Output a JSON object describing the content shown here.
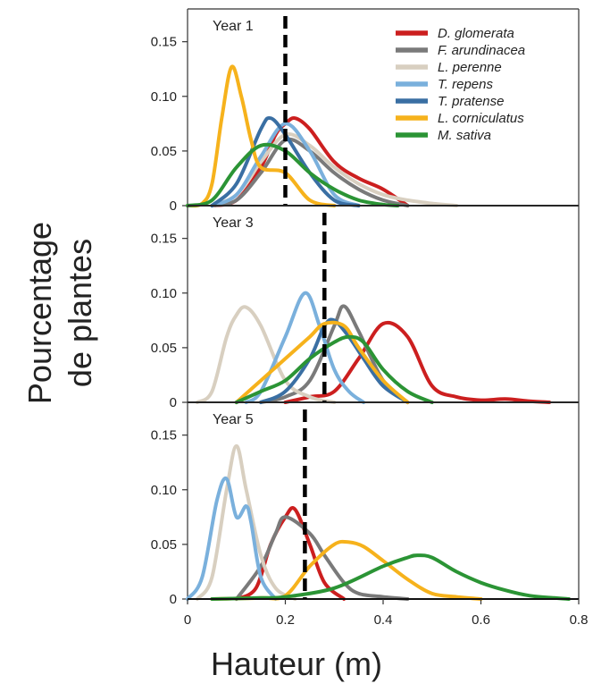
{
  "chart_data": {
    "type": "line",
    "xlabel": "Hauteur (m)",
    "ylabel_lines": [
      "Pourcentage",
      "de plantes"
    ],
    "x_ticks": [
      "0",
      "0.2",
      "0.4",
      "0.6",
      "0.8"
    ],
    "y_ticks": [
      "0",
      "0.05",
      "0.10",
      "0.15"
    ],
    "xlim": [
      0,
      0.8
    ],
    "ylim": [
      0,
      0.18
    ],
    "legend_position": "top-right",
    "legend": [
      {
        "name": "D. glomerata",
        "color": "#cc1f1f"
      },
      {
        "name": "F. arundinacea",
        "color": "#7a7a7a"
      },
      {
        "name": "L. perenne",
        "color": "#d8cfc0"
      },
      {
        "name": "T. repens",
        "color": "#7ab0dc"
      },
      {
        "name": "T. pratense",
        "color": "#3a6fa3"
      },
      {
        "name": "L. corniculatus",
        "color": "#f6b21c"
      },
      {
        "name": "M. sativa",
        "color": "#2b9435"
      }
    ],
    "panels": [
      {
        "label": "Year 1",
        "mean_line": 0.2,
        "series": [
          {
            "color": "#cc1f1f",
            "x": [
              0.05,
              0.1,
              0.15,
              0.18,
              0.2,
              0.22,
              0.25,
              0.3,
              0.35,
              0.4,
              0.45
            ],
            "y": [
              0,
              0.005,
              0.035,
              0.065,
              0.075,
              0.08,
              0.07,
              0.04,
              0.025,
              0.015,
              0
            ]
          },
          {
            "color": "#7a7a7a",
            "x": [
              0.05,
              0.1,
              0.15,
              0.2,
              0.25,
              0.3,
              0.35,
              0.4,
              0.45
            ],
            "y": [
              0,
              0.005,
              0.03,
              0.06,
              0.05,
              0.03,
              0.015,
              0.005,
              0
            ]
          },
          {
            "color": "#d8cfc0",
            "x": [
              0.05,
              0.1,
              0.15,
              0.2,
              0.25,
              0.3,
              0.35,
              0.4,
              0.45,
              0.5,
              0.55
            ],
            "y": [
              0,
              0.01,
              0.04,
              0.065,
              0.055,
              0.035,
              0.02,
              0.01,
              0.005,
              0.002,
              0
            ]
          },
          {
            "color": "#7ab0dc",
            "x": [
              0.05,
              0.1,
              0.15,
              0.2,
              0.25,
              0.3,
              0.35
            ],
            "y": [
              0,
              0.01,
              0.045,
              0.075,
              0.05,
              0.01,
              0
            ]
          },
          {
            "color": "#3a6fa3",
            "x": [
              0.05,
              0.1,
              0.15,
              0.17,
              0.2,
              0.25,
              0.3,
              0.35
            ],
            "y": [
              0,
              0.02,
              0.07,
              0.08,
              0.065,
              0.03,
              0.005,
              0
            ]
          },
          {
            "color": "#f6b21c",
            "x": [
              0,
              0.03,
              0.05,
              0.07,
              0.09,
              0.11,
              0.13,
              0.15,
              0.2,
              0.25,
              0.3
            ],
            "y": [
              0,
              0.002,
              0.02,
              0.08,
              0.127,
              0.1,
              0.06,
              0.035,
              0.03,
              0.005,
              0
            ]
          },
          {
            "color": "#2b9435",
            "x": [
              0,
              0.05,
              0.1,
              0.15,
              0.2,
              0.25,
              0.3,
              0.35,
              0.4,
              0.43
            ],
            "y": [
              0,
              0.005,
              0.035,
              0.055,
              0.05,
              0.03,
              0.015,
              0.005,
              0.001,
              0
            ]
          }
        ]
      },
      {
        "label": "Year 3",
        "mean_line": 0.28,
        "series": [
          {
            "color": "#cc1f1f",
            "x": [
              0.2,
              0.25,
              0.3,
              0.35,
              0.4,
              0.45,
              0.5,
              0.55,
              0.6,
              0.65,
              0.7,
              0.74
            ],
            "y": [
              0,
              0.005,
              0.01,
              0.04,
              0.072,
              0.06,
              0.015,
              0.005,
              0.002,
              0.003,
              0.001,
              0
            ]
          },
          {
            "color": "#7a7a7a",
            "x": [
              0.15,
              0.2,
              0.25,
              0.3,
              0.32,
              0.35,
              0.4,
              0.45
            ],
            "y": [
              0,
              0.005,
              0.02,
              0.07,
              0.088,
              0.065,
              0.02,
              0
            ]
          },
          {
            "color": "#d8cfc0",
            "x": [
              0.02,
              0.05,
              0.08,
              0.1,
              0.12,
              0.15,
              0.2,
              0.25,
              0.3
            ],
            "y": [
              0,
              0.01,
              0.06,
              0.08,
              0.087,
              0.07,
              0.02,
              0.005,
              0
            ]
          },
          {
            "color": "#7ab0dc",
            "x": [
              0.12,
              0.15,
              0.2,
              0.24,
              0.27,
              0.3,
              0.33,
              0.36
            ],
            "y": [
              0,
              0.01,
              0.06,
              0.1,
              0.07,
              0.03,
              0.01,
              0
            ]
          },
          {
            "color": "#3a6fa3",
            "x": [
              0.15,
              0.2,
              0.25,
              0.28,
              0.3,
              0.33,
              0.36,
              0.4,
              0.45
            ],
            "y": [
              0,
              0.01,
              0.04,
              0.07,
              0.075,
              0.06,
              0.04,
              0.015,
              0
            ]
          },
          {
            "color": "#f6b21c",
            "x": [
              0.1,
              0.15,
              0.2,
              0.25,
              0.28,
              0.32,
              0.35,
              0.4,
              0.45
            ],
            "y": [
              0,
              0.02,
              0.04,
              0.06,
              0.072,
              0.07,
              0.05,
              0.02,
              0
            ]
          },
          {
            "color": "#2b9435",
            "x": [
              0.1,
              0.15,
              0.2,
              0.25,
              0.3,
              0.33,
              0.36,
              0.4,
              0.45,
              0.5
            ],
            "y": [
              0,
              0.01,
              0.02,
              0.04,
              0.055,
              0.06,
              0.055,
              0.03,
              0.01,
              0
            ]
          }
        ]
      },
      {
        "label": "Year 5",
        "mean_line": 0.24,
        "series": [
          {
            "color": "#cc1f1f",
            "x": [
              0.1,
              0.14,
              0.17,
              0.2,
              0.22,
              0.25,
              0.28,
              0.32
            ],
            "y": [
              0,
              0.01,
              0.05,
              0.075,
              0.082,
              0.05,
              0.015,
              0
            ]
          },
          {
            "color": "#7a7a7a",
            "x": [
              0.1,
              0.15,
              0.18,
              0.2,
              0.25,
              0.28,
              0.32,
              0.35,
              0.4,
              0.45
            ],
            "y": [
              0,
              0.03,
              0.06,
              0.075,
              0.06,
              0.04,
              0.015,
              0.005,
              0.002,
              0
            ]
          },
          {
            "color": "#d8cfc0",
            "x": [
              0.02,
              0.05,
              0.08,
              0.1,
              0.12,
              0.15,
              0.18,
              0.22
            ],
            "y": [
              0,
              0.02,
              0.1,
              0.14,
              0.1,
              0.04,
              0.01,
              0
            ]
          },
          {
            "color": "#7ab0dc",
            "x": [
              0,
              0.03,
              0.06,
              0.08,
              0.1,
              0.12,
              0.13,
              0.15,
              0.18
            ],
            "y": [
              0,
              0.02,
              0.09,
              0.11,
              0.075,
              0.085,
              0.07,
              0.02,
              0
            ]
          },
          {
            "color": "#f6b21c",
            "x": [
              0.05,
              0.15,
              0.2,
              0.25,
              0.3,
              0.33,
              0.36,
              0.4,
              0.45,
              0.5,
              0.55,
              0.6
            ],
            "y": [
              0,
              0.001,
              0.003,
              0.03,
              0.05,
              0.052,
              0.048,
              0.035,
              0.018,
              0.005,
              0.002,
              0
            ]
          },
          {
            "color": "#2b9435",
            "x": [
              0.05,
              0.15,
              0.2,
              0.3,
              0.4,
              0.45,
              0.47,
              0.5,
              0.55,
              0.6,
              0.65,
              0.7,
              0.75,
              0.78
            ],
            "y": [
              0,
              0.001,
              0.002,
              0.01,
              0.03,
              0.038,
              0.04,
              0.038,
              0.025,
              0.015,
              0.008,
              0.003,
              0.001,
              0
            ]
          }
        ]
      }
    ]
  }
}
